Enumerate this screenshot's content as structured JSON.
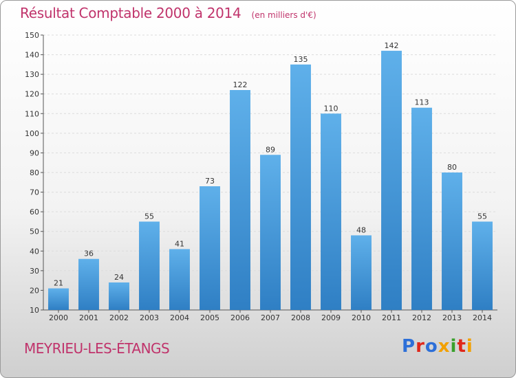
{
  "header": {
    "title": "Résultat Comptable 2000 à 2014",
    "subtitle": "(en milliers d'€)"
  },
  "footer": {
    "place": "MEYRIEU-LES-ÉTANGS",
    "brand": "Proxiti"
  },
  "colors": {
    "title": "#c0336b",
    "bar_top": "#5fb0ea",
    "bar_bottom": "#2f7fc4",
    "brand_letters": [
      "#2d6fd8",
      "#e0271a",
      "#2d6fd8",
      "#f2a000",
      "#3aa02c",
      "#e0271a",
      "#f2a000"
    ]
  },
  "chart_data": {
    "type": "bar",
    "title": "Résultat Comptable 2000 à 2014",
    "subtitle": "(en milliers d'€)",
    "xlabel": "",
    "ylabel": "",
    "categories": [
      "2000",
      "2001",
      "2002",
      "2003",
      "2004",
      "2005",
      "2006",
      "2007",
      "2008",
      "2009",
      "2010",
      "2011",
      "2012",
      "2013",
      "2014"
    ],
    "values": [
      21,
      36,
      24,
      55,
      41,
      73,
      122,
      89,
      135,
      110,
      48,
      142,
      113,
      80,
      55
    ],
    "ylim": [
      10,
      150
    ],
    "yticks": [
      10,
      20,
      30,
      40,
      50,
      60,
      70,
      80,
      90,
      100,
      110,
      120,
      130,
      140,
      150
    ],
    "grid": true,
    "legend": "none",
    "data_labels": true
  }
}
